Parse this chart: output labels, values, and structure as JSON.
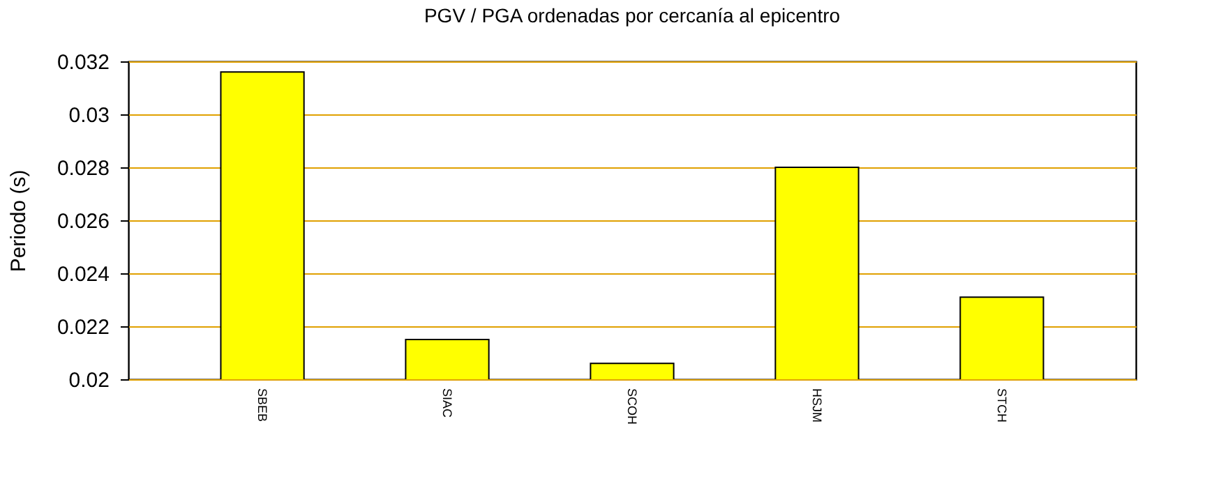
{
  "chart_data": {
    "type": "bar",
    "title": "PGV / PGA ordenadas por cercanía al epicentro",
    "ylabel": "Periodo (s)",
    "categories": [
      "SBEB",
      "SIAC",
      "SCOH",
      "HSJM",
      "STCH"
    ],
    "values": [
      0.0316,
      0.0215,
      0.0206,
      0.028,
      0.0231
    ],
    "color": "#ffff00",
    "ylim": [
      0.02,
      0.032
    ],
    "yticks": [
      0.02,
      0.022,
      0.024,
      0.026,
      0.028,
      0.03,
      0.032
    ],
    "grid": "y"
  }
}
